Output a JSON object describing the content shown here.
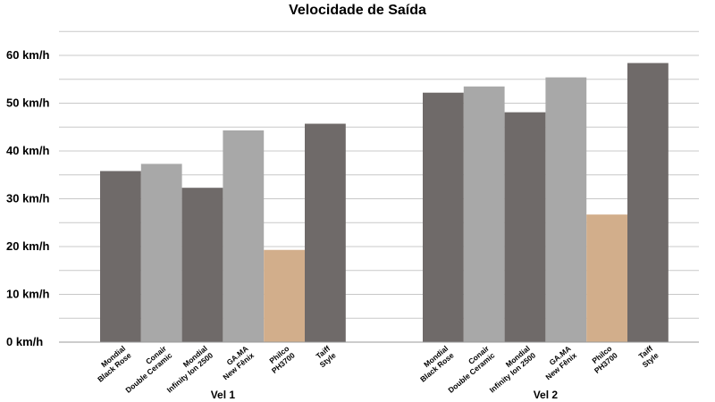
{
  "chart_data": {
    "type": "bar",
    "title": "Velocidade de Saída",
    "xlabel": "",
    "ylabel": "",
    "ylim": [
      0,
      65
    ],
    "yticks": [
      0,
      10,
      20,
      30,
      40,
      50,
      60
    ],
    "ytick_labels": [
      "0 km/h",
      "10 km/h",
      "20 km/h",
      "30 km/h",
      "40 km/h",
      "50 km/h",
      "60 km/h"
    ],
    "grid": true,
    "legend": "none",
    "products": [
      {
        "line1": "Mondial",
        "line2": "Black Rose",
        "color": "#6f6a69"
      },
      {
        "line1": "Conair",
        "line2": "Double Ceramic",
        "color": "#a8a8a8"
      },
      {
        "line1": "Mondial",
        "line2": "Infinity Ion 2500",
        "color": "#6f6a69"
      },
      {
        "line1": "GA.MA",
        "line2": "New Fênix",
        "color": "#a8a8a8"
      },
      {
        "line1": "Philco",
        "line2": "PH3700",
        "color": "#d2ae8b"
      },
      {
        "line1": "Taiff",
        "line2": "Style",
        "color": "#6f6a69"
      }
    ],
    "groups": [
      {
        "name": "Vel 1",
        "values": [
          35.8,
          37.3,
          32.3,
          44.3,
          19.3,
          45.7
        ]
      },
      {
        "name": "Vel 2",
        "values": [
          52.2,
          53.5,
          48.1,
          55.4,
          26.7,
          58.4
        ]
      }
    ]
  }
}
